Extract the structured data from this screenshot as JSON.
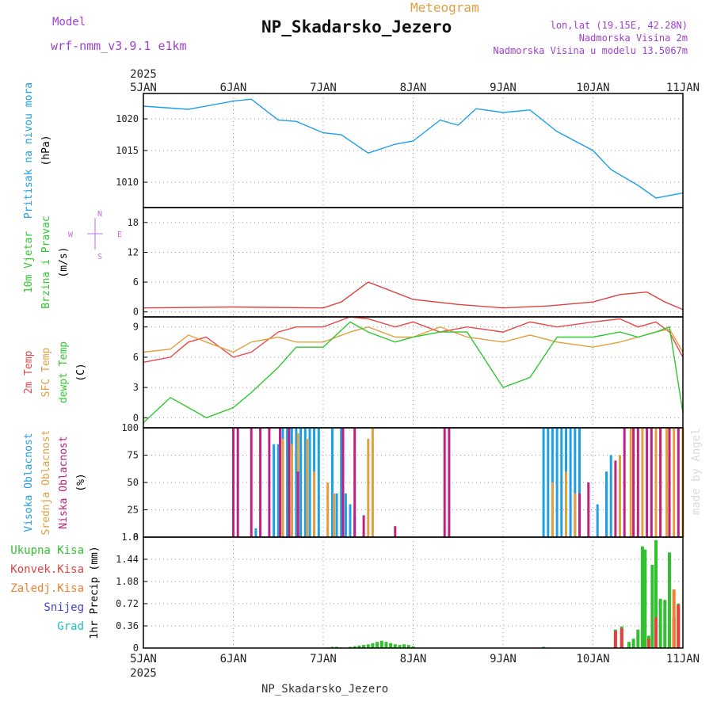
{
  "header": {
    "model_label": "Model",
    "model_name": "wrf-nmm_v3.9.1 e1km",
    "product": "Meteogram",
    "station": "NP_Skadarsko_Jezero",
    "lonlat": "lon,lat (19.15E, 42.28N)",
    "altitude": "Nadmorska Visina 2m",
    "model_altitude": "Nadmorska Visina u modelu 13.5067m"
  },
  "footer": {
    "station": "NP_Skadarsko_Jezero",
    "credit": "made by Angel"
  },
  "colors": {
    "pressure": "#1ea0e6",
    "wind_low": "#e04040",
    "wind_high": "#a020d0",
    "temp2m": "#e84848",
    "sfc": "#e0a040",
    "dew": "#30c830",
    "high_cloud": "#1ea0e6",
    "mid_cloud": "#e0a040",
    "low_cloud": "#c02080",
    "total_precip": "#30c030",
    "conv_precip": "#e84040",
    "frz_precip": "#f08030",
    "snow": "#4040e0",
    "graupel": "#20c0c0"
  },
  "chart_data": [
    {
      "type": "line",
      "panel": "pressure",
      "ylabel": [
        "Pritisak na nivou mora",
        "(hPa)"
      ],
      "yticks": [
        1010,
        1015,
        1020
      ],
      "ylim": [
        1006,
        1024
      ],
      "x": [
        0,
        0.5,
        1.0,
        1.2,
        1.5,
        1.7,
        2.0,
        2.2,
        2.5,
        2.8,
        3.0,
        3.3,
        3.5,
        3.7,
        4.0,
        4.3,
        4.6,
        5.0,
        5.2,
        5.5,
        5.7,
        6.0
      ],
      "series": [
        {
          "name": "",
          "values": [
            1022.0,
            1021.5,
            1022.8,
            1023.1,
            1019.8,
            1019.6,
            1017.8,
            1017.5,
            1014.6,
            1016.0,
            1016.5,
            1019.8,
            1019.0,
            1021.6,
            1021.0,
            1021.4,
            1018.0,
            1015.0,
            1012.0,
            1009.5,
            1007.5,
            1008.3
          ]
        }
      ]
    },
    {
      "type": "line",
      "panel": "wind",
      "ylabel": [
        "10m Vjetar",
        "Brzina i Pravac",
        "(m/s)"
      ],
      "yticks": [
        0,
        6,
        12,
        18
      ],
      "ylim": [
        -1,
        21
      ],
      "compass": [
        "N",
        "E",
        "S",
        "W"
      ],
      "x": [
        0,
        1.0,
        2.0,
        2.2,
        2.5,
        3.0,
        3.5,
        4.0,
        4.5,
        5.0,
        5.3,
        5.6,
        5.8,
        6.0
      ],
      "series": [
        {
          "name": "",
          "values": [
            0.8,
            1.0,
            0.8,
            2.0,
            6.0,
            2.5,
            1.5,
            0.8,
            1.2,
            2.0,
            3.5,
            4.0,
            2.0,
            0.5
          ]
        }
      ]
    },
    {
      "type": "line",
      "panel": "temperature",
      "ylabel": [
        "2m Temp",
        "SFC Temp",
        "dewpt Temp",
        "(C)"
      ],
      "yticks": [
        0,
        3,
        6,
        9
      ],
      "ylim": [
        -1,
        10
      ],
      "x": [
        0,
        0.3,
        0.5,
        0.7,
        1.0,
        1.2,
        1.5,
        1.7,
        2.0,
        2.3,
        2.5,
        2.8,
        3.0,
        3.3,
        3.6,
        4.0,
        4.3,
        4.6,
        5.0,
        5.3,
        5.5,
        5.7,
        5.85,
        6.0
      ],
      "series": [
        {
          "name": "",
          "values": [
            5.5,
            6.0,
            7.5,
            8.0,
            6.0,
            6.5,
            8.5,
            9.0,
            9.0,
            10.0,
            9.8,
            9.0,
            9.5,
            8.5,
            9.0,
            8.5,
            9.5,
            9.0,
            9.5,
            9.8,
            9.0,
            9.5,
            8.5,
            6.0
          ]
        },
        {
          "name": "",
          "values": [
            6.5,
            6.8,
            8.2,
            7.5,
            6.5,
            7.5,
            8.0,
            7.5,
            7.5,
            8.5,
            9.0,
            8.0,
            8.0,
            9.0,
            8.0,
            7.5,
            8.2,
            7.5,
            7.0,
            7.5,
            8.0,
            8.5,
            8.8,
            6.5
          ]
        },
        {
          "name": "",
          "values": [
            -0.5,
            2.0,
            1.0,
            0.0,
            1.0,
            2.5,
            5.0,
            7.0,
            7.0,
            9.5,
            8.5,
            7.5,
            8.0,
            8.5,
            8.5,
            3.0,
            4.0,
            8.0,
            8.0,
            8.5,
            8.0,
            8.5,
            9.0,
            0.5
          ]
        }
      ]
    },
    {
      "type": "bar",
      "panel": "clouds",
      "ylabel": [
        "Visoka Oblacnost",
        "Srednja Oblacnost",
        "Niska Oblacnost",
        "(%)"
      ],
      "yticks": [
        0,
        25,
        50,
        75,
        100
      ],
      "ylim": [
        0,
        100
      ],
      "series": [
        {
          "name": "",
          "x": [
            1.25,
            1.45,
            1.5,
            1.55,
            1.6,
            1.65,
            1.7,
            1.75,
            1.8,
            1.85,
            1.9,
            1.95,
            2.1,
            2.15,
            2.2,
            2.25,
            2.3,
            2.35,
            4.45,
            4.5,
            4.55,
            4.6,
            4.65,
            4.7,
            4.75,
            4.8,
            4.85,
            5.05,
            5.15,
            5.2
          ],
          "values": [
            8,
            85,
            85,
            100,
            100,
            100,
            100,
            100,
            100,
            100,
            100,
            100,
            100,
            40,
            100,
            40,
            30,
            20,
            100,
            100,
            100,
            100,
            100,
            100,
            100,
            100,
            100,
            30,
            60,
            75
          ]
        },
        {
          "name": "",
          "x": [
            1.55,
            1.65,
            1.72,
            1.82,
            1.9,
            2.05,
            2.12,
            2.5,
            2.55,
            4.55,
            4.7,
            4.8,
            5.3,
            5.42,
            5.55,
            5.7,
            5.82,
            5.9,
            6.0
          ],
          "values": [
            90,
            85,
            95,
            90,
            60,
            50,
            40,
            90,
            100,
            50,
            60,
            40,
            75,
            100,
            100,
            100,
            100,
            100,
            100
          ]
        },
        {
          "name": "",
          "x": [
            1.0,
            1.05,
            1.2,
            1.3,
            1.4,
            1.52,
            1.62,
            1.72,
            2.22,
            2.35,
            2.45,
            2.8,
            3.35,
            3.4,
            4.85,
            4.95,
            5.25,
            5.35,
            5.45,
            5.5,
            5.6,
            5.65,
            5.75,
            5.85,
            5.95
          ],
          "values": [
            100,
            100,
            100,
            100,
            100,
            100,
            100,
            60,
            100,
            100,
            20,
            10,
            100,
            100,
            40,
            50,
            70,
            100,
            100,
            100,
            100,
            100,
            100,
            100,
            100
          ]
        }
      ]
    },
    {
      "type": "bar",
      "panel": "precipitation",
      "ylabel": [
        "Ukupna Kisa",
        "Konvek.Kisa",
        "Zaledj.Kisa",
        "Snijeg",
        "Grad",
        "1hr Precip (mm)"
      ],
      "yticks": [
        0,
        0.36,
        0.72,
        1.08,
        1.44,
        1.8
      ],
      "ylim": [
        0,
        1.8
      ],
      "series": [
        {
          "name": "",
          "x": [
            2.05,
            2.1,
            2.15,
            2.2,
            2.3,
            2.35,
            2.4,
            2.45,
            2.5,
            2.55,
            2.6,
            2.65,
            2.7,
            2.75,
            2.8,
            2.85,
            2.9,
            2.95,
            3.0,
            4.45,
            5.25,
            5.32,
            5.4,
            5.45,
            5.5,
            5.55,
            5.58,
            5.62,
            5.66,
            5.7,
            5.75,
            5.8,
            5.85,
            5.9,
            5.95
          ],
          "values": [
            0.01,
            0.02,
            0.02,
            0.01,
            0.02,
            0.03,
            0.04,
            0.05,
            0.06,
            0.08,
            0.1,
            0.12,
            0.1,
            0.08,
            0.06,
            0.05,
            0.06,
            0.05,
            0.03,
            0.02,
            0.3,
            0.35,
            0.1,
            0.15,
            0.3,
            1.65,
            1.6,
            0.2,
            1.35,
            1.75,
            0.8,
            0.78,
            1.55,
            0.5,
            0.72
          ]
        },
        {
          "name": "",
          "x": [
            5.25,
            5.32,
            5.62,
            5.7,
            5.9,
            5.95
          ],
          "values": [
            0.28,
            0.32,
            0.15,
            0.5,
            0.48,
            0.7
          ]
        },
        {
          "name": "",
          "x": [
            5.9
          ],
          "values": [
            0.95
          ]
        }
      ]
    }
  ],
  "time_axis": {
    "year": "2025",
    "labels": [
      "5JAN",
      "6JAN",
      "7JAN",
      "8JAN",
      "9JAN",
      "10JAN",
      "11JAN"
    ],
    "xlim": [
      0,
      6
    ]
  }
}
